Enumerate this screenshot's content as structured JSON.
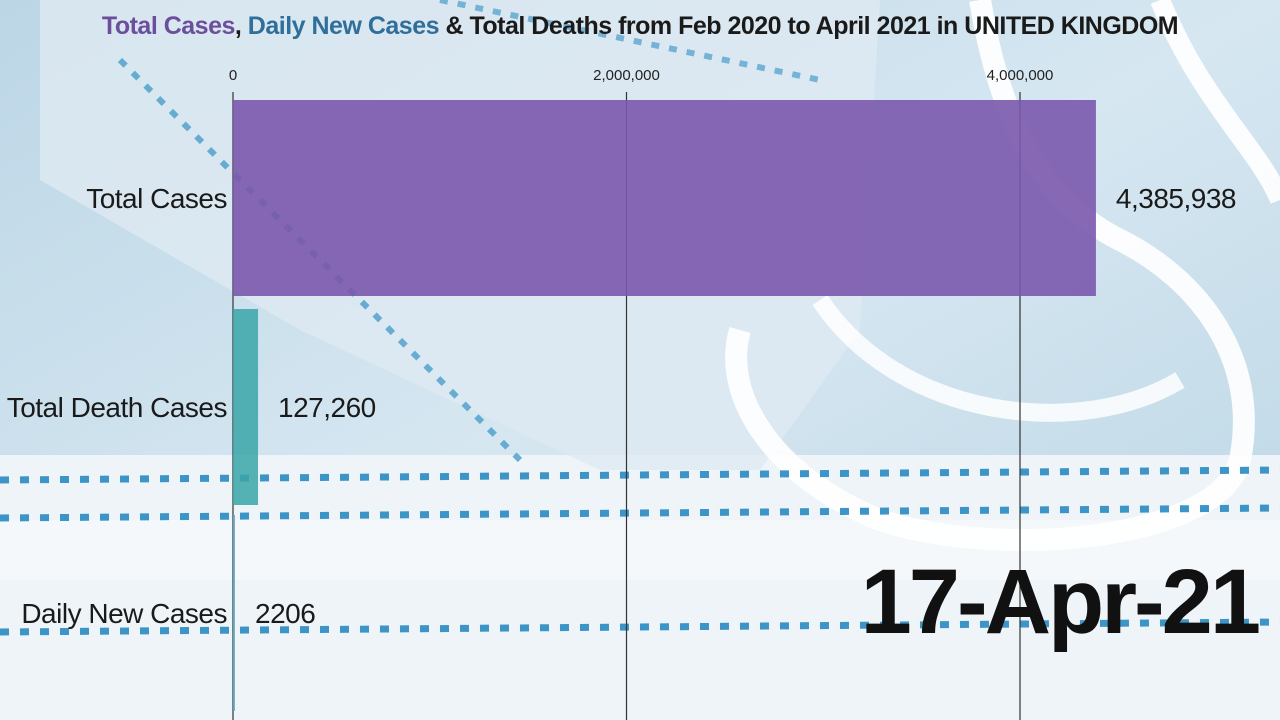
{
  "title": {
    "part1": "Total Cases",
    "sep1": ", ",
    "part2": "Daily New Cases",
    "part3": " & Total Deaths from Feb 2020 to April 2021 in UNITED KINGDOM"
  },
  "date_label": "17-Apr-21",
  "colors": {
    "total_cases": "#7a58ad",
    "total_deaths": "#3aa6a8",
    "daily_new": "#5fa7c4",
    "title_part1": "#6c4f9c",
    "title_part2": "#2f6f9a"
  },
  "chart_data": {
    "type": "bar",
    "orientation": "horizontal",
    "title": "Total Cases, Daily New Cases & Total Deaths from Feb 2020 to April 2021 in UNITED KINGDOM",
    "categories": [
      "Total Cases",
      "Total Death Cases",
      "Daily New Cases"
    ],
    "values": [
      4385938,
      127260,
      2206
    ],
    "value_labels": [
      "4,385,938",
      "127,260",
      "2206"
    ],
    "xlim": [
      0,
      4800000
    ],
    "x_ticks": [
      0,
      2000000,
      4000000
    ],
    "x_tick_labels": [
      "0",
      "2,000,000",
      "4,000,000"
    ],
    "axis_position": "top",
    "grid": true,
    "legend": "none",
    "date": "17-Apr-21"
  }
}
